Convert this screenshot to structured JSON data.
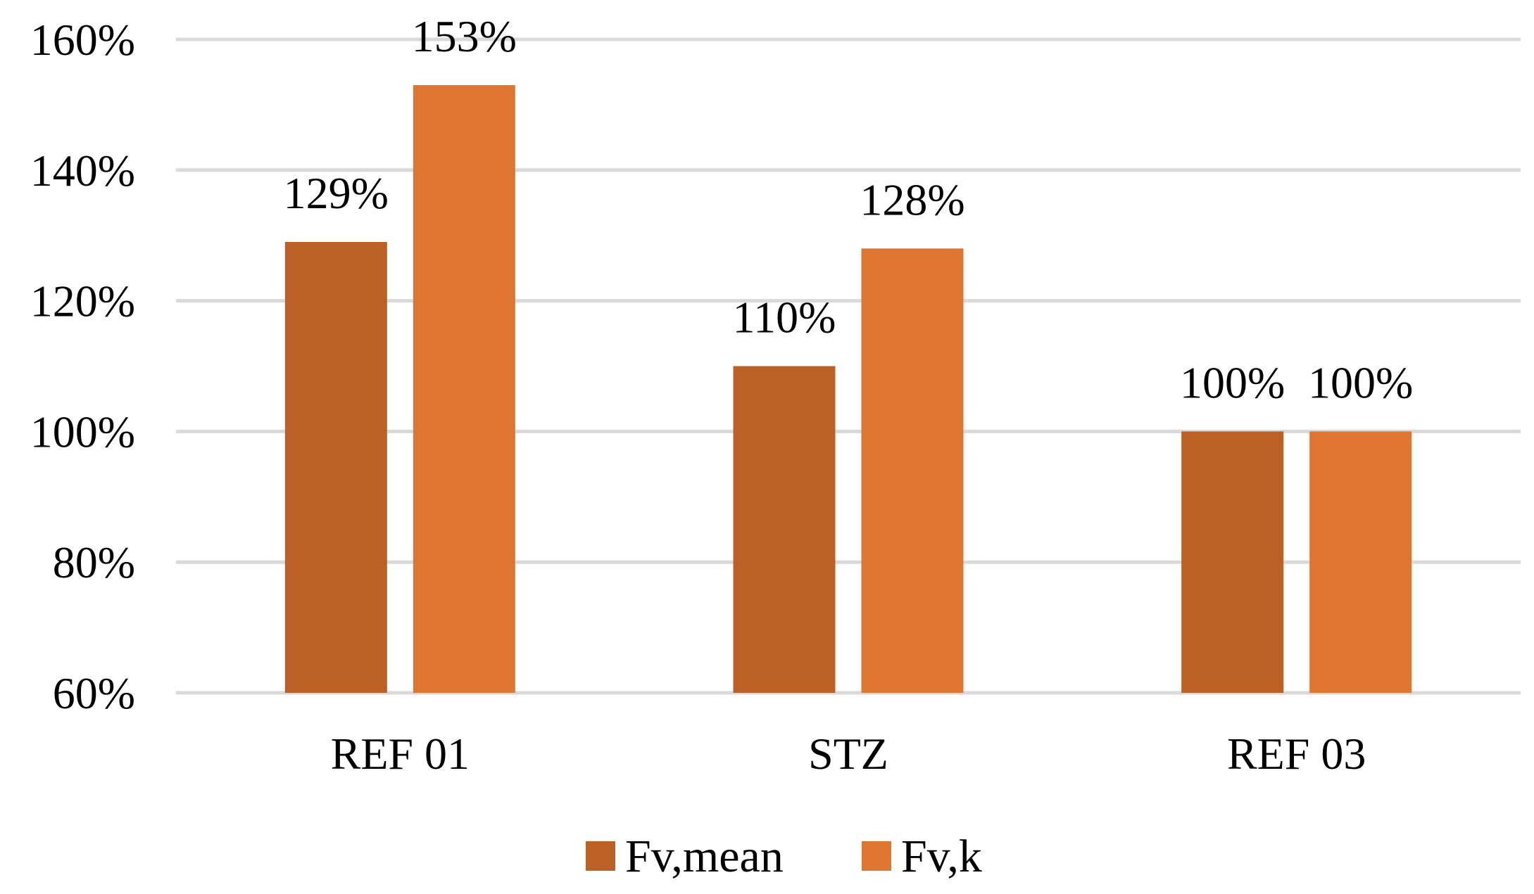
{
  "chart_data": {
    "type": "bar",
    "title": "",
    "xlabel": "",
    "ylabel": "",
    "categories": [
      "REF 01",
      "STZ",
      "REF 03"
    ],
    "series": [
      {
        "name": "Fv,mean",
        "values": [
          129,
          110,
          100
        ],
        "labels": [
          "129%",
          "110%",
          "100%"
        ],
        "color": "#bb6125"
      },
      {
        "name": "Fv,k",
        "values": [
          153,
          128,
          100
        ],
        "labels": [
          "153%",
          "128%",
          "100%"
        ],
        "color": "#de7631"
      }
    ],
    "ylim": [
      60,
      160
    ],
    "yticks": [
      60,
      80,
      100,
      120,
      140,
      160
    ],
    "ytick_labels": [
      "60%",
      "80%",
      "100%",
      "120%",
      "140%",
      "160%"
    ],
    "grid": true,
    "legend_position": "bottom"
  }
}
